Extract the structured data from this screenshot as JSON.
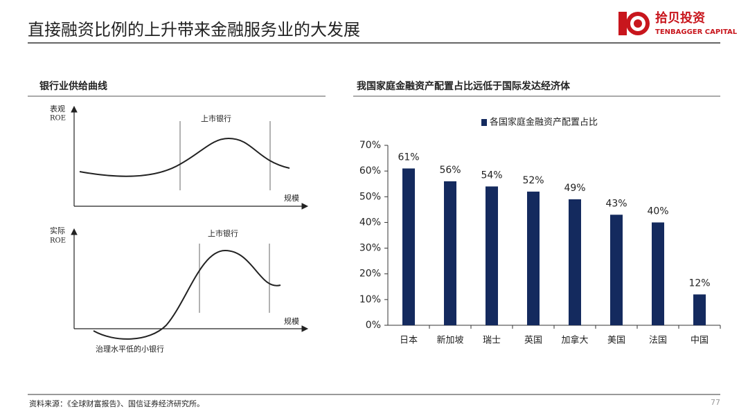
{
  "header": {
    "title": "直接融资比例的上升带来金融服务业的大发展",
    "logo_cn": "拾贝投资",
    "logo_en": "TENBAGGER CAPITAL"
  },
  "left_panel": {
    "title": "银行业供给曲线",
    "top": {
      "y_label_1": "表观",
      "y_label_2": "ROE",
      "region": "上市银行",
      "x_label": "规模"
    },
    "bottom": {
      "y_label_1": "实际",
      "y_label_2": "ROE",
      "region": "上市银行",
      "x_label": "规模",
      "note": "治理水平低的小银行"
    }
  },
  "chart_data": {
    "type": "bar",
    "title": "我国家庭金融资产配置占比远低于国际发达经济体",
    "categories": [
      "日本",
      "新加坡",
      "瑞士",
      "英国",
      "加拿大",
      "美国",
      "法国",
      "中国"
    ],
    "series": [
      {
        "name": "各国家庭金融资产配置占比",
        "color": "#142a5e",
        "values": [
          61,
          56,
          54,
          52,
          49,
          43,
          40,
          12
        ],
        "value_labels": [
          "61%",
          "56%",
          "54%",
          "52%",
          "49%",
          "43%",
          "40%",
          "12%"
        ]
      }
    ],
    "ylim": [
      0,
      70
    ],
    "yticks": [
      {
        "value": 0,
        "label": "0%"
      },
      {
        "value": 10,
        "label": "10%"
      },
      {
        "value": 20,
        "label": "20%"
      },
      {
        "value": 30,
        "label": "30%"
      },
      {
        "value": 40,
        "label": "40%"
      },
      {
        "value": 50,
        "label": "50%"
      },
      {
        "value": 60,
        "label": "60%"
      },
      {
        "value": 70,
        "label": "70%"
      }
    ],
    "legend": "top"
  },
  "footer": {
    "source": "资料来源：《全球财富报告》、国信证券经济研究所。",
    "page": "77"
  }
}
